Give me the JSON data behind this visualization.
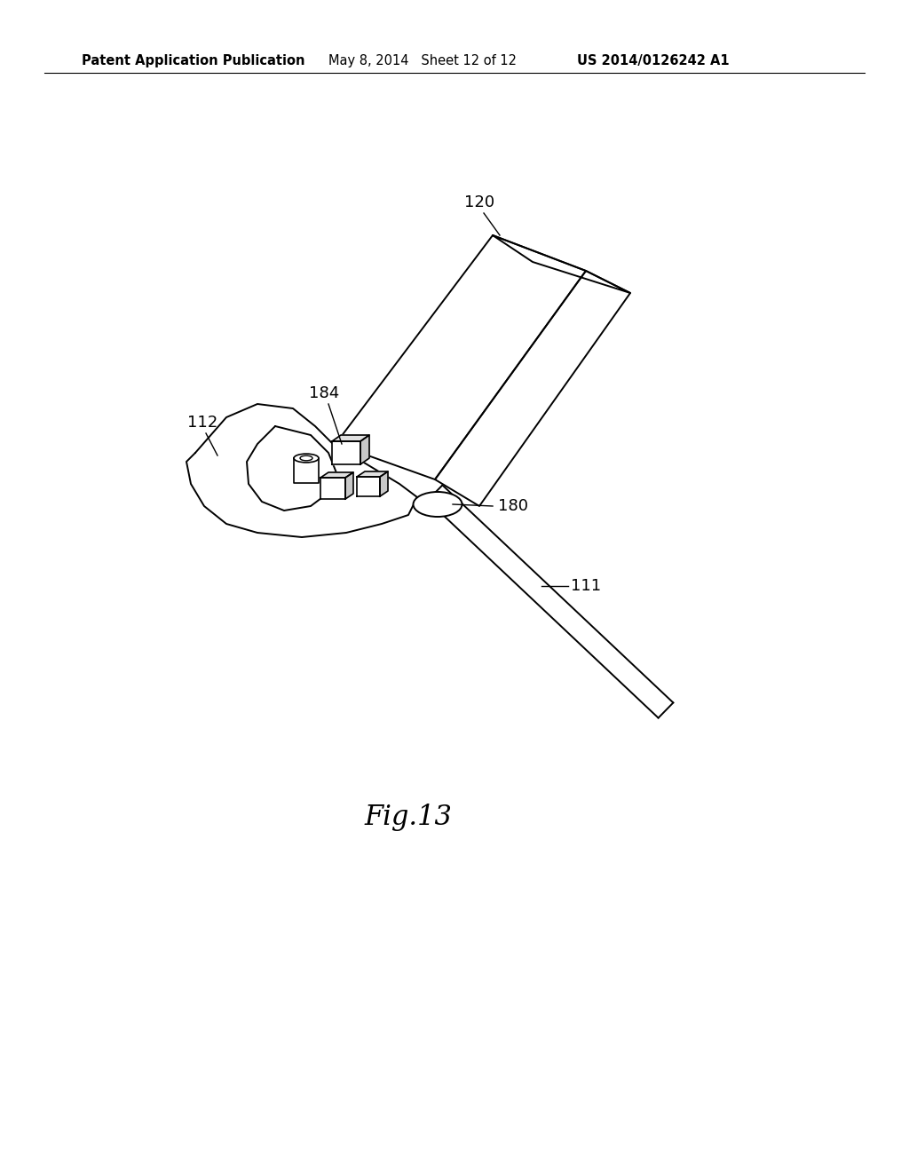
{
  "bg_color": "#ffffff",
  "line_color": "#000000",
  "header_left": "Patent Application Publication",
  "header_mid": "May 8, 2014   Sheet 12 of 12",
  "header_right": "US 2014/0126242 A1",
  "fig_label": "Fig.13",
  "line_thickness": 1.4,
  "fig_label_fontsize": 22,
  "header_fontsize": 10.5,
  "label_fontsize": 13
}
